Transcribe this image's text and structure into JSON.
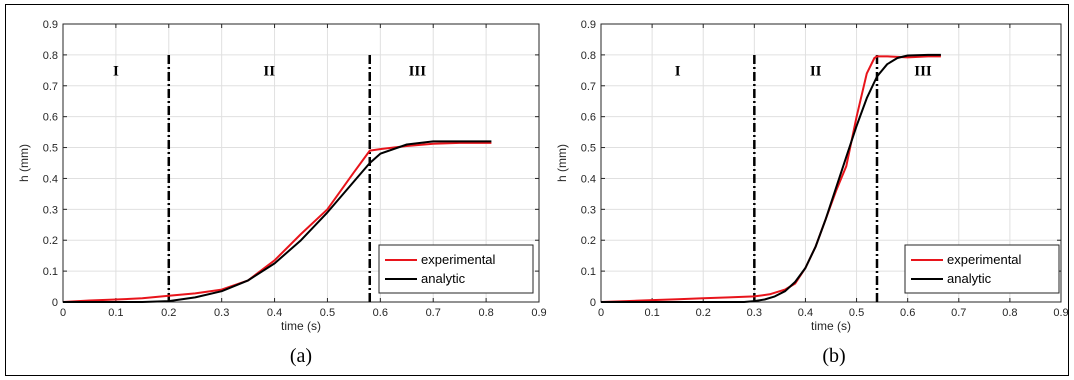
{
  "chart_data": [
    {
      "type": "line",
      "caption": "(a)",
      "xlabel": "time (s)",
      "ylabel": "h (mm)",
      "xlim": [
        0,
        0.9
      ],
      "ylim": [
        0,
        0.9
      ],
      "xticks": [
        0,
        0.1,
        0.2,
        0.3,
        0.4,
        0.5,
        0.6,
        0.7,
        0.8,
        0.9
      ],
      "yticks": [
        0,
        0.1,
        0.2,
        0.3,
        0.4,
        0.5,
        0.6,
        0.7,
        0.8,
        0.9
      ],
      "grid": true,
      "legend_position": "bottom-right",
      "regions": [
        {
          "label": "I",
          "x": 0.1
        },
        {
          "label": "II",
          "x": 0.39
        },
        {
          "label": "III",
          "x": 0.67
        }
      ],
      "region_dividers": [
        0.2,
        0.58
      ],
      "region_label_y": 0.75,
      "series": [
        {
          "name": "experimental",
          "color": "#e8141b",
          "x": [
            0,
            0.05,
            0.1,
            0.15,
            0.2,
            0.25,
            0.3,
            0.35,
            0.4,
            0.45,
            0.5,
            0.55,
            0.58,
            0.6,
            0.65,
            0.7,
            0.75,
            0.81
          ],
          "y": [
            0,
            0.005,
            0.008,
            0.012,
            0.02,
            0.028,
            0.04,
            0.07,
            0.135,
            0.22,
            0.3,
            0.42,
            0.49,
            0.495,
            0.505,
            0.512,
            0.515,
            0.515
          ]
        },
        {
          "name": "analytic",
          "color": "#000000",
          "x": [
            0,
            0.05,
            0.1,
            0.15,
            0.2,
            0.25,
            0.3,
            0.35,
            0.4,
            0.45,
            0.5,
            0.55,
            0.58,
            0.6,
            0.65,
            0.7,
            0.75,
            0.81
          ],
          "y": [
            0,
            0,
            0,
            0,
            0.003,
            0.015,
            0.035,
            0.07,
            0.125,
            0.2,
            0.29,
            0.39,
            0.45,
            0.48,
            0.51,
            0.52,
            0.52,
            0.52
          ]
        }
      ]
    },
    {
      "type": "line",
      "caption": "(b)",
      "xlabel": "time (s)",
      "ylabel": "h (mm)",
      "xlim": [
        0,
        0.9
      ],
      "ylim": [
        0,
        0.9
      ],
      "xticks": [
        0,
        0.1,
        0.2,
        0.3,
        0.4,
        0.5,
        0.6,
        0.7,
        0.8,
        0.9
      ],
      "yticks": [
        0,
        0.1,
        0.2,
        0.3,
        0.4,
        0.5,
        0.6,
        0.7,
        0.8,
        0.9
      ],
      "grid": true,
      "legend_position": "bottom-right",
      "regions": [
        {
          "label": "I",
          "x": 0.15
        },
        {
          "label": "II",
          "x": 0.42
        },
        {
          "label": "III",
          "x": 0.63
        }
      ],
      "region_dividers": [
        0.3,
        0.54
      ],
      "region_label_y": 0.75,
      "series": [
        {
          "name": "experimental",
          "color": "#e8141b",
          "x": [
            0,
            0.05,
            0.1,
            0.15,
            0.2,
            0.25,
            0.3,
            0.33,
            0.36,
            0.38,
            0.4,
            0.42,
            0.44,
            0.46,
            0.48,
            0.5,
            0.52,
            0.535,
            0.54,
            0.56,
            0.6,
            0.64,
            0.665
          ],
          "y": [
            0,
            0.003,
            0.006,
            0.009,
            0.012,
            0.015,
            0.018,
            0.025,
            0.04,
            0.06,
            0.11,
            0.18,
            0.27,
            0.36,
            0.44,
            0.6,
            0.74,
            0.79,
            0.795,
            0.795,
            0.792,
            0.795,
            0.795
          ]
        },
        {
          "name": "analytic",
          "color": "#000000",
          "x": [
            0,
            0.1,
            0.2,
            0.28,
            0.3,
            0.32,
            0.34,
            0.36,
            0.38,
            0.4,
            0.42,
            0.44,
            0.46,
            0.48,
            0.5,
            0.52,
            0.54,
            0.56,
            0.58,
            0.6,
            0.64,
            0.665
          ],
          "y": [
            0,
            0,
            0,
            0,
            0.003,
            0.008,
            0.018,
            0.035,
            0.065,
            0.11,
            0.18,
            0.27,
            0.37,
            0.47,
            0.57,
            0.66,
            0.73,
            0.77,
            0.79,
            0.798,
            0.8,
            0.8
          ]
        }
      ]
    }
  ]
}
